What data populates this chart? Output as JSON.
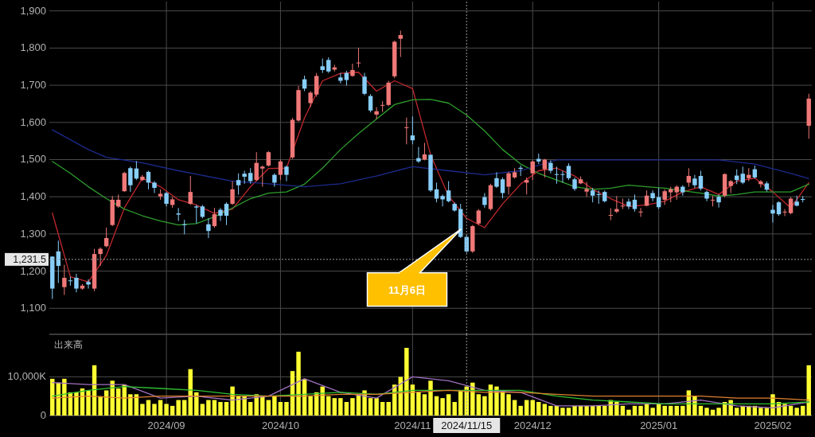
{
  "chart_data": [
    {
      "type": "candlestick",
      "tick_labels": "y",
      "grid": true,
      "categories": [
        null,
        null,
        null,
        null,
        null,
        null,
        null,
        null,
        null,
        null,
        null,
        null,
        null,
        null,
        null,
        null,
        null,
        null,
        null,
        "2024/09",
        null,
        null,
        null,
        null,
        null,
        null,
        null,
        null,
        null,
        null,
        null,
        null,
        null,
        null,
        null,
        null,
        null,
        null,
        "2024/10",
        null,
        null,
        null,
        null,
        null,
        null,
        null,
        null,
        null,
        null,
        null,
        null,
        null,
        null,
        null,
        null,
        null,
        null,
        null,
        null,
        null,
        "2024/11",
        null,
        null,
        null,
        null,
        null,
        null,
        null,
        null,
        "2024/11/15",
        null,
        null,
        null,
        null,
        null,
        null,
        null,
        null,
        null,
        null,
        "2024/12",
        null,
        null,
        null,
        null,
        null,
        null,
        null,
        null,
        null,
        null,
        null,
        null,
        null,
        null,
        null,
        null,
        null,
        null,
        null,
        null,
        "2025/01",
        null,
        null,
        null,
        null,
        null,
        null,
        null,
        null,
        null,
        null,
        null,
        null,
        null,
        null,
        null,
        null,
        null,
        null,
        "2025/02",
        null,
        null,
        null,
        null,
        null,
        null
      ],
      "colors": [
        "#87cefa",
        "#87cefa",
        "#f07878",
        "#87cefa",
        "#87cefa",
        "#f07878",
        "#87cefa",
        "#f07878",
        "#f07878",
        "#f07878",
        "#f07878",
        "#f07878",
        "#f07878",
        "#87cefa",
        "#87cefa",
        "#f07878",
        "#87cefa",
        "#87cefa",
        "#f07878",
        "#87cefa",
        "#f07878",
        "#87cefa",
        "#87cefa",
        "#f07878",
        "#87cefa",
        "#87cefa",
        "#87cefa",
        "#f07878",
        "#87cefa",
        "#87cefa",
        "#f07878",
        "#87cefa",
        "#87cefa",
        "#87cefa",
        "#f07878",
        "#f07878",
        "#f07878",
        "#87cefa",
        "#f07878",
        "#87cefa",
        "#f07878",
        "#f07878",
        "#87cefa",
        "#f07878",
        "#f07878",
        "#87cefa",
        "#87cefa",
        "#f07878",
        "#87cefa",
        "#87cefa",
        "#f07878",
        "#f07878",
        "#87cefa",
        "#87cefa",
        "#f07878",
        "#f07878",
        "#f07878",
        "#f07878",
        "#f07878",
        "#f07878",
        "#87cefa",
        "#87cefa",
        "#f07878",
        "#87cefa",
        "#87cefa",
        "#87cefa",
        "#87cefa",
        "#87cefa",
        "#87cefa",
        "#87cefa",
        "#f07878",
        "#f07878",
        "#87cefa",
        "#f07878",
        "#87cefa",
        "#87cefa",
        "#f07878",
        "#f07878",
        "#87cefa",
        "#f07878",
        "#f07878",
        "#87cefa",
        "#f07878",
        "#87cefa",
        "#87cefa",
        "#87cefa",
        "#87cefa",
        "#87cefa",
        "#f07878",
        "#f07878",
        "#87cefa",
        "#87cefa",
        "#87cefa",
        "#f07878",
        "#f07878",
        "#f07878",
        "#87cefa",
        "#87cefa",
        "#f07878",
        "#f07878",
        "#87cefa",
        "#87cefa",
        "#f07878",
        "#f07878",
        "#f07878",
        "#87cefa",
        "#f07878",
        "#87cefa",
        "#87cefa",
        "#87cefa",
        "#f07878",
        "#87cefa",
        "#f07878",
        "#f07878",
        "#87cefa",
        "#87cefa",
        "#f07878",
        "#87cefa",
        "#f07878",
        "#87cefa",
        "#87cefa",
        "#87cefa",
        "#f07878",
        "#f07878",
        "#87cefa",
        "#87cefa",
        "#f07878"
      ],
      "ohlc": [
        [
          1239,
          1240,
          1125,
          1153
        ],
        [
          1253,
          1282,
          1168,
          1214
        ],
        [
          1157,
          1217,
          1136,
          1182
        ],
        [
          1175,
          1185,
          1161,
          1173
        ],
        [
          1182,
          1193,
          1143,
          1153
        ],
        [
          1153,
          1165,
          1150,
          1161
        ],
        [
          1171,
          1178,
          1153,
          1164
        ],
        [
          1153,
          1260,
          1146,
          1246
        ],
        [
          1246,
          1264,
          1214,
          1260
        ],
        [
          1267,
          1317,
          1264,
          1289
        ],
        [
          1324,
          1402,
          1321,
          1392
        ],
        [
          1374,
          1406,
          1370,
          1392
        ],
        [
          1415,
          1467,
          1413,
          1464
        ],
        [
          1477,
          1481,
          1413,
          1431
        ],
        [
          1476,
          1496,
          1445,
          1449
        ],
        [
          1445,
          1459,
          1442,
          1454
        ],
        [
          1467,
          1470,
          1420,
          1438
        ],
        [
          1438,
          1442,
          1410,
          1424
        ],
        [
          1401,
          1420,
          1392,
          1408
        ],
        [
          1410,
          1413,
          1374,
          1381
        ],
        [
          1378,
          1399,
          1370,
          1393
        ],
        [
          1355,
          1370,
          1335,
          1352
        ],
        [
          1326,
          1338,
          1299,
          1324
        ],
        [
          1381,
          1456,
          1378,
          1413
        ],
        [
          1374,
          1378,
          1328,
          1371
        ],
        [
          1374,
          1378,
          1342,
          1346
        ],
        [
          1326,
          1342,
          1289,
          1308
        ],
        [
          1321,
          1370,
          1317,
          1353
        ],
        [
          1365,
          1370,
          1335,
          1349
        ],
        [
          1381,
          1385,
          1324,
          1349
        ],
        [
          1381,
          1442,
          1378,
          1420
        ],
        [
          1445,
          1463,
          1406,
          1431
        ],
        [
          1462,
          1470,
          1435,
          1454
        ],
        [
          1464,
          1477,
          1435,
          1442
        ],
        [
          1445,
          1520,
          1442,
          1491
        ],
        [
          1476,
          1484,
          1427,
          1481
        ],
        [
          1484,
          1523,
          1481,
          1520
        ],
        [
          1459,
          1463,
          1427,
          1438
        ],
        [
          1459,
          1500,
          1445,
          1495
        ],
        [
          1481,
          1484,
          1442,
          1459
        ],
        [
          1506,
          1612,
          1502,
          1607
        ],
        [
          1605,
          1698,
          1602,
          1687
        ],
        [
          1716,
          1726,
          1684,
          1691
        ],
        [
          1652,
          1684,
          1641,
          1680
        ],
        [
          1675,
          1733,
          1669,
          1725
        ],
        [
          1751,
          1772,
          1733,
          1741
        ],
        [
          1768,
          1775,
          1733,
          1737
        ],
        [
          1742,
          1755,
          1737,
          1748
        ],
        [
          1721,
          1733,
          1705,
          1712
        ],
        [
          1733,
          1739,
          1699,
          1714
        ],
        [
          1725,
          1758,
          1723,
          1741
        ],
        [
          1759,
          1801,
          1748,
          1761
        ],
        [
          1723,
          1733,
          1673,
          1677
        ],
        [
          1671,
          1676,
          1627,
          1632
        ],
        [
          1621,
          1641,
          1609,
          1630
        ],
        [
          1645,
          1657,
          1628,
          1647
        ],
        [
          1647,
          1712,
          1644,
          1707
        ],
        [
          1724,
          1820,
          1719,
          1817
        ],
        [
          1825,
          1847,
          1776,
          1835
        ],
        [
          1585,
          1613,
          1541,
          1587
        ],
        [
          1565,
          1616,
          1541,
          1552
        ],
        [
          1504,
          1534,
          1491,
          1495
        ],
        [
          1500,
          1545,
          1498,
          1514
        ],
        [
          1513,
          1513,
          1413,
          1417
        ],
        [
          1420,
          1438,
          1385,
          1395
        ],
        [
          1402,
          1406,
          1374,
          1393
        ],
        [
          1417,
          1442,
          1385,
          1388
        ],
        [
          1381,
          1385,
          1360,
          1363
        ],
        [
          1367,
          1381,
          1289,
          1292
        ],
        [
          1292,
          1296,
          1249,
          1253
        ],
        [
          1253,
          1324,
          1249,
          1321
        ],
        [
          1328,
          1367,
          1324,
          1363
        ],
        [
          1399,
          1410,
          1370,
          1378
        ],
        [
          1367,
          1435,
          1363,
          1431
        ],
        [
          1450,
          1466,
          1424,
          1427
        ],
        [
          1447,
          1452,
          1396,
          1410
        ],
        [
          1427,
          1467,
          1406,
          1463
        ],
        [
          1452,
          1477,
          1449,
          1466
        ],
        [
          1478,
          1484,
          1456,
          1475
        ],
        [
          1438,
          1452,
          1406,
          1445
        ],
        [
          1463,
          1498,
          1445,
          1495
        ],
        [
          1502,
          1516,
          1488,
          1495
        ],
        [
          1474,
          1502,
          1452,
          1500
        ],
        [
          1491,
          1498,
          1463,
          1470
        ],
        [
          1461,
          1481,
          1435,
          1459
        ],
        [
          1461,
          1470,
          1438,
          1459
        ],
        [
          1483,
          1490,
          1445,
          1450
        ],
        [
          1447,
          1452,
          1416,
          1421
        ],
        [
          1436,
          1455,
          1434,
          1447
        ],
        [
          1414,
          1440,
          1400,
          1421
        ],
        [
          1417,
          1424,
          1385,
          1403
        ],
        [
          1407,
          1417,
          1381,
          1406
        ],
        [
          1413,
          1417,
          1385,
          1388
        ],
        [
          1349,
          1369,
          1337,
          1351
        ],
        [
          1360,
          1402,
          1356,
          1367
        ],
        [
          1376,
          1395,
          1367,
          1376
        ],
        [
          1387,
          1395,
          1367,
          1374
        ],
        [
          1392,
          1406,
          1360,
          1367
        ],
        [
          1358,
          1370,
          1346,
          1360
        ],
        [
          1376,
          1417,
          1374,
          1403
        ],
        [
          1410,
          1417,
          1388,
          1396
        ],
        [
          1399,
          1424,
          1367,
          1372
        ],
        [
          1392,
          1420,
          1378,
          1415
        ],
        [
          1412,
          1427,
          1385,
          1420
        ],
        [
          1412,
          1431,
          1392,
          1427
        ],
        [
          1427,
          1431,
          1403,
          1412
        ],
        [
          1438,
          1477,
          1427,
          1456
        ],
        [
          1449,
          1459,
          1424,
          1431
        ],
        [
          1456,
          1470,
          1417,
          1422
        ],
        [
          1413,
          1417,
          1388,
          1395
        ],
        [
          1390,
          1402,
          1374,
          1392
        ],
        [
          1400,
          1406,
          1371,
          1385
        ],
        [
          1403,
          1463,
          1399,
          1461
        ],
        [
          1429,
          1445,
          1410,
          1442
        ],
        [
          1457,
          1474,
          1434,
          1445
        ],
        [
          1462,
          1481,
          1434,
          1438
        ],
        [
          1450,
          1477,
          1442,
          1459
        ],
        [
          1474,
          1484,
          1449,
          1452
        ],
        [
          1434,
          1445,
          1425,
          1441
        ],
        [
          1436,
          1441,
          1414,
          1419
        ],
        [
          1365,
          1378,
          1331,
          1355
        ],
        [
          1385,
          1388,
          1349,
          1353
        ],
        [
          1358,
          1367,
          1348,
          1360
        ],
        [
          1356,
          1399,
          1353,
          1395
        ],
        [
          1387,
          1403,
          1374,
          1376
        ],
        [
          1394,
          1402,
          1385,
          1393
        ],
        [
          1591,
          1677,
          1556,
          1664
        ]
      ],
      "series": [
        {
          "type": "line",
          "color": "#c0282d",
          "values": [
            1356,
            null,
            null,
            1185,
            null,
            null,
            1171,
            null,
            null,
            1242,
            null,
            null,
            1370,
            null,
            null,
            1450,
            null,
            null,
            1427,
            null,
            null,
            1392,
            null,
            null,
            1378,
            null,
            null,
            1355,
            null,
            null,
            1367,
            null,
            null,
            1427,
            null,
            null,
            1476,
            null,
            null,
            1477,
            null,
            null,
            1612,
            null,
            null,
            1712,
            null,
            null,
            1732,
            null,
            null,
            1735,
            null,
            null,
            1684,
            null,
            null,
            1712,
            null,
            null,
            1691,
            null,
            null,
            1513,
            null,
            null,
            1402,
            null,
            null,
            1342,
            null,
            null,
            1317,
            null,
            null,
            1381,
            null,
            null,
            1434,
            null,
            null,
            1470,
            null,
            null,
            1477,
            null,
            null,
            1456,
            null,
            null,
            1420,
            null,
            null,
            1395,
            null,
            null,
            1374,
            null,
            null,
            1378,
            null,
            null,
            1388,
            null,
            null,
            1413,
            null,
            null,
            1427,
            null,
            null,
            1406,
            null,
            null,
            1442,
            null,
            null,
            1450,
            null,
            null,
            1413,
            null,
            null,
            1370,
            null,
            null,
            1438
          ]
        },
        {
          "type": "line",
          "color": "#2e9e2e",
          "values": [
            1495,
            null,
            null,
            1463,
            null,
            null,
            1427,
            null,
            null,
            1395,
            null,
            null,
            1367,
            null,
            null,
            1349,
            null,
            null,
            1335,
            null,
            null,
            1324,
            null,
            null,
            1328,
            null,
            null,
            1346,
            null,
            null,
            1370,
            null,
            null,
            1395,
            null,
            null,
            1410,
            null,
            null,
            1413,
            null,
            null,
            1434,
            null,
            null,
            1477,
            null,
            null,
            1527,
            null,
            null,
            1570,
            null,
            null,
            1609,
            null,
            null,
            1648,
            null,
            null,
            1661,
            null,
            null,
            1662,
            null,
            null,
            1652,
            null,
            null,
            1620,
            null,
            null,
            1577,
            null,
            null,
            1527,
            null,
            null,
            1488,
            null,
            null,
            1463,
            null,
            null,
            1445,
            null,
            null,
            1427,
            null,
            null,
            1420,
            null,
            null,
            1423,
            null,
            null,
            1431,
            null,
            null,
            1427,
            null,
            null,
            1423,
            null,
            null,
            1416,
            null,
            null,
            1410,
            null,
            null,
            1402,
            null,
            null,
            1406,
            null,
            null,
            1413,
            null,
            null,
            1413,
            null,
            null,
            1413,
            null,
            null,
            1434
          ]
        },
        {
          "type": "line",
          "color": "#1c2a8c",
          "values": [
            1580,
            null,
            null,
            null,
            null,
            null,
            1527,
            null,
            null,
            1506,
            null,
            null,
            null,
            null,
            null,
            1491,
            null,
            null,
            null,
            null,
            null,
            1470,
            null,
            null,
            null,
            null,
            null,
            null,
            null,
            null,
            1442,
            null,
            null,
            null,
            null,
            null,
            1435,
            null,
            null,
            null,
            null,
            null,
            1427,
            null,
            null,
            null,
            null,
            null,
            1435,
            null,
            null,
            null,
            null,
            null,
            1456,
            null,
            null,
            null,
            null,
            null,
            1481,
            null,
            null,
            null,
            null,
            null,
            1470,
            null,
            null,
            null,
            null,
            null,
            1459,
            null,
            null,
            null,
            null,
            null,
            1470,
            null,
            null,
            null,
            null,
            null,
            1499,
            null,
            null,
            null,
            null,
            null,
            null,
            null,
            null,
            1499,
            null,
            null,
            null,
            null,
            null,
            null,
            null,
            null,
            1499,
            null,
            null,
            null,
            null,
            null,
            null,
            null,
            null,
            1499,
            null,
            null,
            null,
            null,
            null,
            1488,
            null,
            null,
            null,
            null,
            null,
            1463,
            null,
            null,
            1449
          ]
        }
      ],
      "ylim": [
        1030,
        1925
      ],
      "yticks": [
        {
          "value": 1100,
          "label": "1,100"
        },
        {
          "value": 1200,
          "label": "1,200"
        },
        {
          "value": 1300,
          "label": "1,300"
        },
        {
          "value": 1400,
          "label": "1,400"
        },
        {
          "value": 1500,
          "label": "1,500"
        },
        {
          "value": 1600,
          "label": "1,600"
        },
        {
          "value": 1700,
          "label": "1,700"
        },
        {
          "value": 1800,
          "label": "1,800"
        },
        {
          "value": 1900,
          "label": "1,900"
        }
      ],
      "ref_lines": [
        {
          "axis": "y",
          "value": 1231.5,
          "label": "1,231.5",
          "line_style": "dotted"
        },
        {
          "axis": "x",
          "value": "2024/11/15",
          "line_style": "dotted"
        }
      ],
      "annotations": [
        "11月6日"
      ]
    },
    {
      "type": "bar",
      "title": "出来高",
      "grid": true,
      "categories": [
        null,
        null,
        null,
        null,
        null,
        null,
        null,
        null,
        null,
        null,
        null,
        null,
        null,
        null,
        null,
        null,
        null,
        null,
        null,
        "2024/09",
        null,
        null,
        null,
        null,
        null,
        null,
        null,
        null,
        null,
        null,
        null,
        null,
        null,
        null,
        null,
        null,
        null,
        null,
        "2024/10",
        null,
        null,
        null,
        null,
        null,
        null,
        null,
        null,
        null,
        null,
        null,
        null,
        null,
        null,
        null,
        null,
        null,
        null,
        null,
        null,
        null,
        "2024/11",
        null,
        null,
        null,
        null,
        null,
        null,
        null,
        null,
        "2024/11/15",
        null,
        null,
        null,
        null,
        null,
        null,
        null,
        null,
        null,
        null,
        "2024/12",
        null,
        null,
        null,
        null,
        null,
        null,
        null,
        null,
        null,
        null,
        null,
        null,
        null,
        null,
        null,
        null,
        null,
        null,
        null,
        null,
        "2025/01",
        null,
        null,
        null,
        null,
        null,
        null,
        null,
        null,
        null,
        null,
        null,
        null,
        null,
        null,
        null,
        null,
        null,
        null,
        "2025/02",
        null,
        null,
        null,
        null,
        null,
        null
      ],
      "series": [
        {
          "type": "bar",
          "color": "#ffff33",
          "values": [
            9500,
            8500,
            9500,
            6000,
            6000,
            7000,
            6500,
            13000,
            5000,
            6500,
            9000,
            7000,
            8000,
            5500,
            5500,
            3000,
            4000,
            3000,
            4000,
            3000,
            2500,
            4000,
            4000,
            12000,
            6000,
            3000,
            4000,
            4000,
            3500,
            3500,
            7500,
            5000,
            5000,
            3500,
            5500,
            5000,
            4000,
            5000,
            3500,
            3500,
            11500,
            16500,
            9500,
            5000,
            6000,
            7500,
            5000,
            4500,
            4500,
            3500,
            4500,
            5500,
            6500,
            4500,
            4500,
            3500,
            3500,
            8000,
            10000,
            17500,
            8000,
            6000,
            5500,
            9000,
            5000,
            4500,
            5500,
            3500,
            6500,
            7500,
            8500,
            5500,
            5000,
            8000,
            7500,
            6500,
            5500,
            4000,
            2500,
            4000,
            4000,
            3500,
            3000,
            2500,
            2500,
            2000,
            2000,
            2500,
            2500,
            2500,
            2500,
            2500,
            2500,
            4000,
            3500,
            2500,
            1500,
            2500,
            2500,
            3000,
            2000,
            3000,
            2500,
            2500,
            2500,
            2500,
            6500,
            5000,
            2500,
            2000,
            1500,
            2000,
            3500,
            4000,
            2000,
            2500,
            2500,
            2500,
            2000,
            2000,
            5500,
            3500,
            3000,
            2500,
            2000,
            2500,
            13000
          ]
        },
        {
          "type": "line",
          "color": "#a070c0",
          "values": [
            8500,
            null,
            null,
            null,
            null,
            null,
            8000,
            null,
            null,
            null,
            null,
            null,
            8000,
            null,
            null,
            null,
            null,
            null,
            4500,
            null,
            null,
            null,
            null,
            null,
            5000,
            null,
            null,
            null,
            null,
            null,
            4000,
            null,
            null,
            null,
            null,
            null,
            5000,
            null,
            null,
            null,
            null,
            null,
            9500,
            null,
            null,
            null,
            null,
            null,
            6000,
            null,
            null,
            null,
            null,
            null,
            4500,
            null,
            null,
            null,
            null,
            null,
            10000,
            null,
            null,
            null,
            null,
            null,
            9000,
            null,
            null,
            null,
            null,
            null,
            6500,
            null,
            null,
            null,
            null,
            null,
            6000,
            null,
            null,
            null,
            null,
            null,
            2500,
            null,
            null,
            null,
            null,
            null,
            2500,
            null,
            null,
            null,
            null,
            null,
            3000,
            null,
            null,
            null,
            null,
            null,
            3000,
            null,
            null,
            null,
            null,
            null,
            4000,
            null,
            null,
            null,
            null,
            null,
            2500,
            null,
            null,
            null,
            null,
            null,
            2000,
            null,
            null,
            null,
            null,
            null,
            3500
          ]
        },
        {
          "type": "line",
          "color": "#30c030",
          "values": [
            5000,
            null,
            null,
            null,
            null,
            null,
            6500,
            null,
            null,
            null,
            null,
            null,
            7500,
            null,
            null,
            null,
            null,
            null,
            7000,
            null,
            null,
            null,
            null,
            null,
            6500,
            null,
            null,
            null,
            null,
            null,
            5500,
            null,
            null,
            null,
            null,
            null,
            5000,
            null,
            null,
            null,
            null,
            null,
            5500,
            null,
            null,
            null,
            null,
            null,
            6000,
            null,
            null,
            null,
            null,
            null,
            5500,
            null,
            null,
            null,
            null,
            null,
            6500,
            null,
            null,
            null,
            null,
            null,
            6500,
            null,
            null,
            null,
            null,
            null,
            6500,
            null,
            null,
            null,
            null,
            null,
            6500,
            null,
            null,
            null,
            null,
            null,
            5000,
            null,
            null,
            null,
            null,
            null,
            4000,
            null,
            null,
            null,
            null,
            null,
            3500,
            null,
            null,
            null,
            null,
            null,
            3000,
            null,
            null,
            null,
            null,
            null,
            3000,
            null,
            null,
            null,
            null,
            null,
            3000,
            null,
            null,
            null,
            null,
            null,
            3000,
            null,
            null,
            null,
            null,
            null,
            3500
          ]
        },
        {
          "type": "line",
          "color": "#e08030",
          "values": [
            4500,
            null,
            null,
            null,
            null,
            null,
            5000,
            null,
            null,
            null,
            null,
            null,
            4500,
            null,
            null,
            null,
            null,
            null,
            5000,
            null,
            null,
            null,
            null,
            null,
            5000,
            null,
            null,
            null,
            null,
            null,
            5000,
            null,
            null,
            null,
            null,
            null,
            5000,
            null,
            null,
            null,
            null,
            null,
            5000,
            null,
            null,
            null,
            null,
            null,
            5500,
            null,
            null,
            null,
            null,
            null,
            5500,
            null,
            null,
            null,
            null,
            null,
            6000,
            null,
            null,
            null,
            null,
            null,
            6500,
            null,
            null,
            null,
            null,
            null,
            6000,
            null,
            null,
            null,
            null,
            null,
            6000,
            null,
            null,
            null,
            null,
            null,
            5500,
            null,
            null,
            null,
            null,
            null,
            5000,
            null,
            null,
            null,
            null,
            null,
            5000,
            null,
            null,
            null,
            null,
            null,
            5000,
            null,
            null,
            null,
            null,
            null,
            5000,
            null,
            null,
            null,
            null,
            null,
            4500,
            null,
            null,
            null,
            null,
            null,
            4500,
            null,
            null,
            null,
            null,
            null,
            4000
          ]
        }
      ],
      "ylim": [
        0,
        21000
      ],
      "yticks": [
        {
          "value": 0,
          "label": "0"
        },
        {
          "value": 10000,
          "label": "10,000K"
        }
      ],
      "ref_lines": [
        {
          "axis": "x",
          "value": "2024/11/15",
          "line_style": "dotted"
        }
      ]
    }
  ]
}
